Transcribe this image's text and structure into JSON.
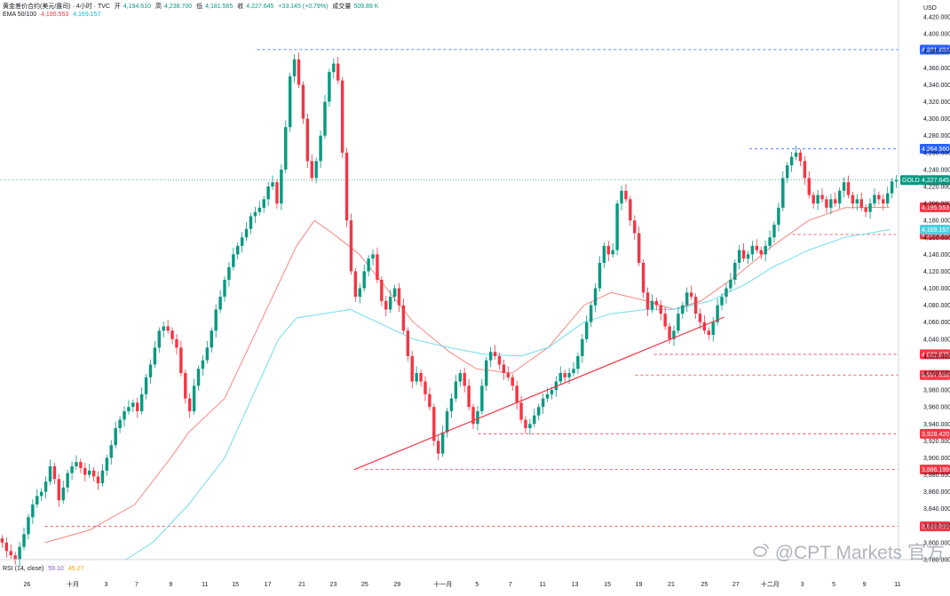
{
  "legend": {
    "title": "黄金差价合约(美元/盎司) · 4小时 · TVC",
    "open_label": "开",
    "open": "4,194.610",
    "high_label": "高",
    "high": "4,238.700",
    "low_label": "低",
    "low": "4,181.565",
    "close_label": "收",
    "close": "4,227.645",
    "change": "+33.145 (+0.79%)",
    "volume_label": "成交量",
    "volume": "509.89 K",
    "ema_label": "EMA 50/100",
    "ema50_value": "4,195.553",
    "ema100_value": "4,169.157",
    "rsi_label": "RSI (14, close)",
    "rsi_value": "59.10",
    "rsi_ma_value": "45.27"
  },
  "watermark": "@CPT Markets 官方",
  "colors": {
    "up": "#089981",
    "down": "#f23645",
    "ema50": "#f7867f",
    "ema100": "#6fdcef",
    "support": "#f23645",
    "resistance": "#2962ff",
    "current": "#089981"
  },
  "chart_data": {
    "type": "candlestick",
    "title": "黄金差价合约(美元/盎司) · 4小时 · TVC",
    "currency": "USD",
    "ylim": [
      3780,
      4440
    ],
    "y_ticks": [
      3780,
      3800,
      3820,
      3840,
      3860,
      3880,
      3900,
      3920,
      3940,
      3960,
      3980,
      4000,
      4020,
      4040,
      4060,
      4080,
      4100,
      4120,
      4140,
      4160,
      4180,
      4200,
      4220,
      4240,
      4260,
      4280,
      4300,
      4320,
      4340,
      4360,
      4380,
      4400,
      4420
    ],
    "y_tick_labels": [
      "3,780.000",
      "3,800.000",
      "3,820.000",
      "3,840.000",
      "3,860.000",
      "3,880.000",
      "3,900.000",
      "3,920.000",
      "3,940.000",
      "3,960.000",
      "3,980.000",
      "4,000.000",
      "4,020.000",
      "4,040.000",
      "4,060.000",
      "4,080.000",
      "4,100.000",
      "4,120.000",
      "4,140.000",
      "4,160.000",
      "4,180.000",
      "4,200.000",
      "4,220.000",
      "4,240.000",
      "4,260.000",
      "4,280.000",
      "4,300.000",
      "4,320.000",
      "4,340.000",
      "4,360.000",
      "4,380.000",
      "4,400.000",
      "4,420.000"
    ],
    "x_labels": [
      "26",
      "十月",
      "3",
      "7",
      "9",
      "11",
      "15",
      "17",
      "21",
      "23",
      "25",
      "29",
      "十一月",
      "5",
      "7",
      "11",
      "13",
      "15",
      "19",
      "21",
      "25",
      "27",
      "十二月",
      "3",
      "5",
      "9",
      "11"
    ],
    "x_label_fracs": [
      0.03,
      0.081,
      0.118,
      0.152,
      0.19,
      0.228,
      0.262,
      0.298,
      0.336,
      0.371,
      0.406,
      0.442,
      0.493,
      0.531,
      0.568,
      0.604,
      0.64,
      0.676,
      0.711,
      0.747,
      0.784,
      0.819,
      0.857,
      0.893,
      0.928,
      0.962,
      0.999
    ],
    "price_levels": [
      {
        "price": 4381.484,
        "label": "4,381.484",
        "kind": "resistance",
        "from_frac": 0.286
      },
      {
        "price": 4264.56,
        "label": "4,264.560",
        "kind": "resistance",
        "from_frac": 0.834
      },
      {
        "price": 4163.458,
        "label": "4,163.458",
        "kind": "support",
        "from_frac": 0.882
      },
      {
        "price": 4022.075,
        "label": "4,022.075",
        "kind": "support",
        "from_frac": 0.728
      },
      {
        "price": 3997.658,
        "label": "3,997.658",
        "kind": "support",
        "from_frac": 0.707
      },
      {
        "price": 3928.42,
        "label": "3,928.420",
        "kind": "support",
        "from_frac": 0.532
      },
      {
        "price": 3886.199,
        "label": "3,886.199",
        "kind": "support",
        "from_frac": 0.406
      },
      {
        "price": 3819.095,
        "label": "3,819.095",
        "kind": "support",
        "from_frac": 0.05
      }
    ],
    "indicator_labels": [
      {
        "label": "4,195.553",
        "price": 4195.553,
        "kind": "ema50"
      },
      {
        "label": "4,169.157",
        "price": 4169.157,
        "kind": "ema100"
      }
    ],
    "last_price": {
      "name": "GOLD",
      "value": 4227.645,
      "label": "4,227.645"
    },
    "trendline": {
      "start": {
        "x_frac": 0.394,
        "price": 3886
      },
      "end": {
        "x_frac": 0.806,
        "price": 4066
      }
    },
    "closes": [
      3800,
      3790,
      3785,
      3780,
      3795,
      3810,
      3830,
      3845,
      3855,
      3860,
      3872,
      3890,
      3875,
      3850,
      3865,
      3882,
      3890,
      3895,
      3888,
      3880,
      3885,
      3878,
      3870,
      3885,
      3900,
      3915,
      3935,
      3945,
      3955,
      3960,
      3965,
      3955,
      3975,
      3995,
      4010,
      4030,
      4050,
      4055,
      4050,
      4040,
      4030,
      4000,
      3970,
      3955,
      3985,
      4005,
      4015,
      4030,
      4050,
      4075,
      4090,
      4110,
      4125,
      4140,
      4150,
      4160,
      4170,
      4185,
      4190,
      4195,
      4205,
      4220,
      4225,
      4200,
      4240,
      4290,
      4350,
      4370,
      4340,
      4300,
      4250,
      4230,
      4250,
      4280,
      4320,
      4355,
      4365,
      4345,
      4260,
      4180,
      4120,
      4090,
      4100,
      4120,
      4135,
      4140,
      4110,
      4085,
      4075,
      4090,
      4100,
      4080,
      4050,
      4020,
      3990,
      4000,
      3990,
      3975,
      3960,
      3920,
      3905,
      3930,
      3955,
      3970,
      3990,
      4000,
      3985,
      3960,
      3940,
      3955,
      3985,
      4015,
      4025,
      4020,
      4010,
      4000,
      3995,
      3985,
      3965,
      3945,
      3935,
      3940,
      3950,
      3960,
      3970,
      3975,
      3980,
      3990,
      4000,
      3995,
      4000,
      4005,
      4020,
      4040,
      4060,
      4080,
      4100,
      4130,
      4150,
      4140,
      4145,
      4200,
      4215,
      4205,
      4180,
      4165,
      4130,
      4095,
      4075,
      4085,
      4080,
      4070,
      4055,
      4040,
      4050,
      4070,
      4080,
      4095,
      4090,
      4070,
      4060,
      4050,
      4045,
      4060,
      4080,
      4090,
      4100,
      4110,
      4130,
      4145,
      4135,
      4140,
      4150,
      4145,
      4140,
      4150,
      4160,
      4175,
      4195,
      4230,
      4245,
      4255,
      4260,
      4250,
      4230,
      4210,
      4200,
      4210,
      4205,
      4195,
      4205,
      4200,
      4215,
      4225,
      4210,
      4200,
      4205,
      4195,
      4190,
      4200,
      4210,
      4205,
      4200,
      4212,
      4226,
      4227.645
    ],
    "ema50": [
      [
        0.05,
        3800
      ],
      [
        0.1,
        3815
      ],
      [
        0.15,
        3845
      ],
      [
        0.19,
        3900
      ],
      [
        0.21,
        3930
      ],
      [
        0.25,
        3970
      ],
      [
        0.29,
        4060
      ],
      [
        0.33,
        4150
      ],
      [
        0.35,
        4180
      ],
      [
        0.37,
        4165
      ],
      [
        0.4,
        4140
      ],
      [
        0.43,
        4100
      ],
      [
        0.46,
        4060
      ],
      [
        0.5,
        4025
      ],
      [
        0.53,
        4005
      ],
      [
        0.57,
        4000
      ],
      [
        0.61,
        4030
      ],
      [
        0.65,
        4080
      ],
      [
        0.68,
        4095
      ],
      [
        0.72,
        4085
      ],
      [
        0.75,
        4075
      ],
      [
        0.78,
        4085
      ],
      [
        0.82,
        4115
      ],
      [
        0.86,
        4150
      ],
      [
        0.9,
        4180
      ],
      [
        0.94,
        4195
      ],
      [
        0.99,
        4195.553
      ]
    ],
    "ema100": [
      [
        0.14,
        3780
      ],
      [
        0.17,
        3800
      ],
      [
        0.21,
        3845
      ],
      [
        0.25,
        3900
      ],
      [
        0.28,
        3970
      ],
      [
        0.31,
        4040
      ],
      [
        0.33,
        4065
      ],
      [
        0.36,
        4070
      ],
      [
        0.39,
        4075
      ],
      [
        0.42,
        4060
      ],
      [
        0.46,
        4040
      ],
      [
        0.5,
        4030
      ],
      [
        0.54,
        4022
      ],
      [
        0.58,
        4020
      ],
      [
        0.61,
        4030
      ],
      [
        0.65,
        4060
      ],
      [
        0.68,
        4070
      ],
      [
        0.72,
        4075
      ],
      [
        0.75,
        4075
      ],
      [
        0.79,
        4085
      ],
      [
        0.83,
        4105
      ],
      [
        0.86,
        4125
      ],
      [
        0.9,
        4145
      ],
      [
        0.94,
        4160
      ],
      [
        0.99,
        4169.157
      ]
    ]
  }
}
